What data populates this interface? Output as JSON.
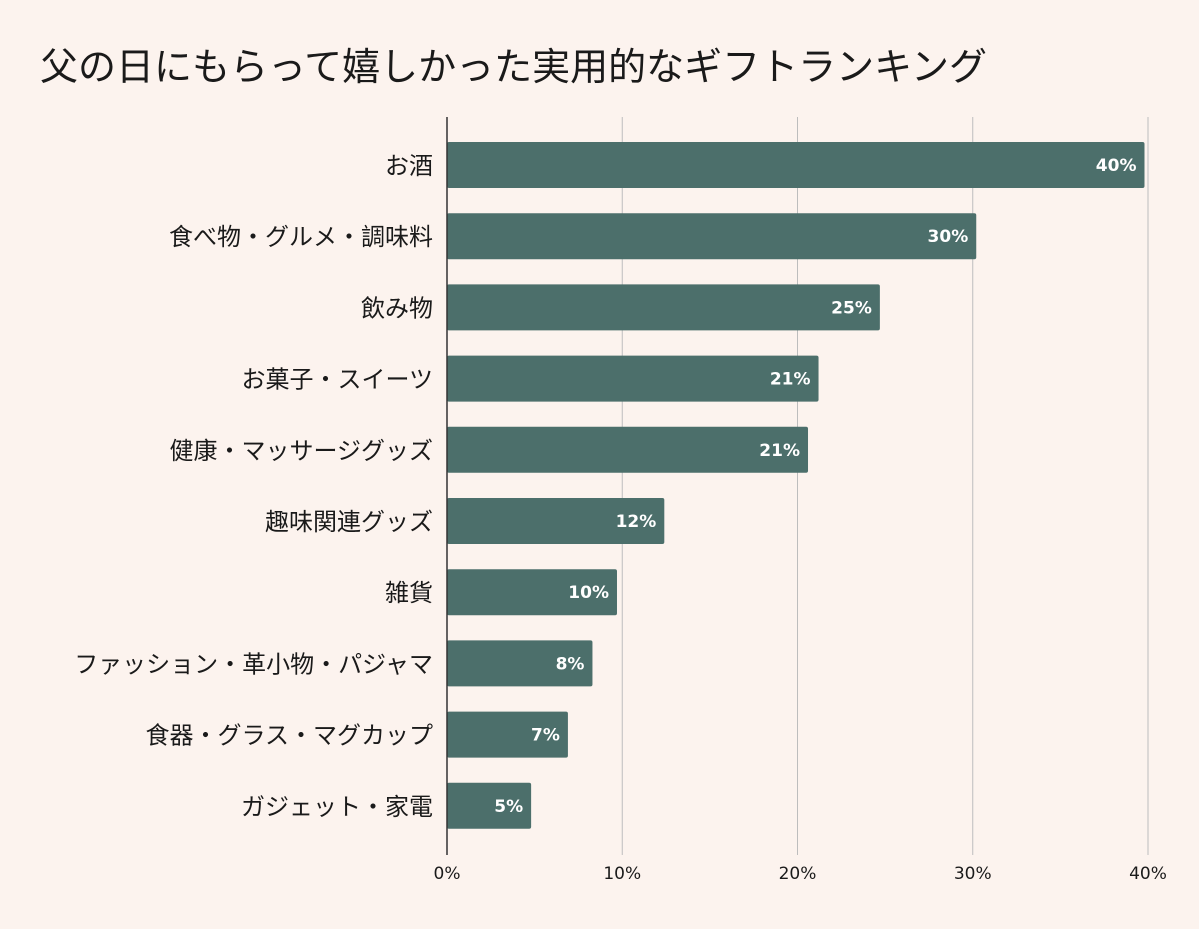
{
  "chart_data": {
    "type": "bar",
    "orientation": "horizontal",
    "title": "父の日にもらって嬉しかった実用的なギフトランキング",
    "categories": [
      "お酒",
      "食べ物・グルメ・調味料",
      "飲み物",
      "お菓子・スイーツ",
      "健康・マッサージグッズ",
      "趣味関連グッズ",
      "雑貨",
      "ファッション・革小物・パジャマ",
      "食器・グラス・マグカップ",
      "ガジェット・家電"
    ],
    "values": [
      39.8,
      30.2,
      24.7,
      21.2,
      20.6,
      12.4,
      9.7,
      8.3,
      6.9,
      4.8
    ],
    "value_labels": [
      "40%",
      "30%",
      "25%",
      "21%",
      "21%",
      "12%",
      "10%",
      "8%",
      "7%",
      "5%"
    ],
    "xlim": [
      0,
      40
    ],
    "xticks": [
      0,
      10,
      20,
      30,
      40
    ],
    "xtick_labels": [
      "0%",
      "10%",
      "20%",
      "30%",
      "40%"
    ],
    "xlabel": "",
    "ylabel": "",
    "grid": true,
    "legend": "none",
    "colors": {
      "bar": "#4c6f6b",
      "background": "#fcf3ee",
      "grid": "#bdbdbd",
      "axis": "#333333"
    }
  }
}
